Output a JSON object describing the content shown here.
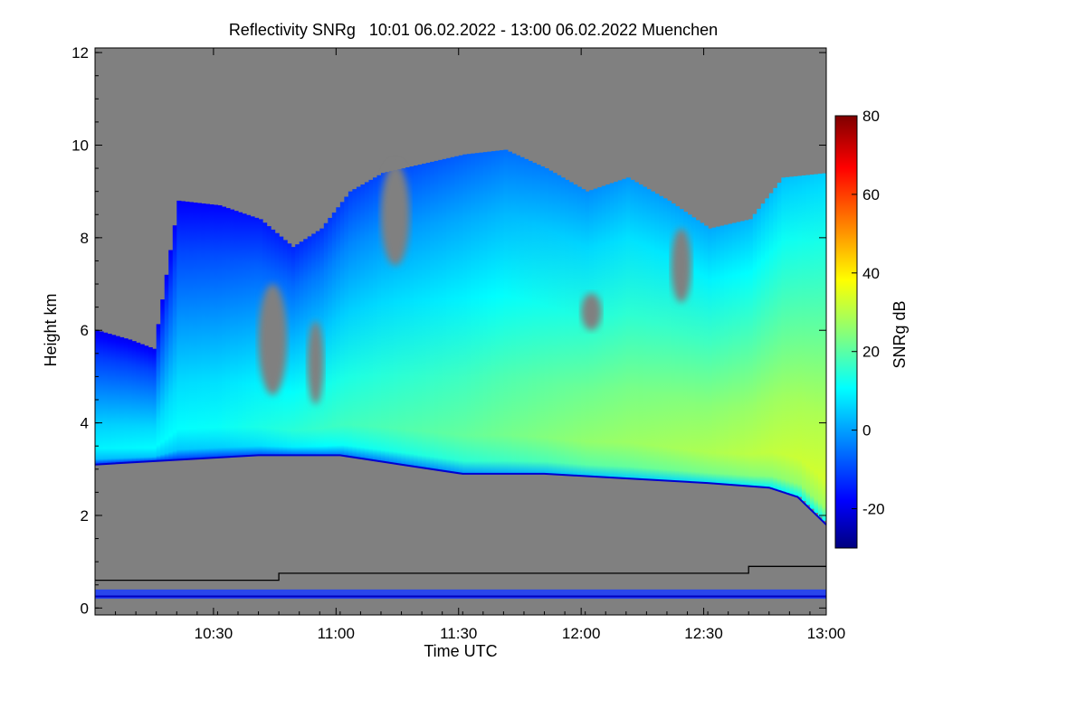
{
  "chart_data": {
    "type": "heatmap",
    "title": "Reflectivity SNRg   10:01 06.02.2022 - 13:00 06.02.2022 Muenchen",
    "xlabel": "Time UTC",
    "ylabel": "Height km",
    "colorbar_label": "SNRg dB",
    "x_range_minutes": [
      0,
      179
    ],
    "x_tick_minutes": [
      29,
      59,
      89,
      119,
      149,
      179
    ],
    "x_tick_labels": [
      "10:30",
      "11:00",
      "11:30",
      "12:00",
      "12:30",
      "13:00"
    ],
    "ylim": [
      -0.15,
      12.1
    ],
    "y_ticks": [
      0,
      2,
      4,
      6,
      8,
      10,
      12
    ],
    "y_tick_labels": [
      "0",
      "2",
      "4",
      "6",
      "8",
      "10",
      "12"
    ],
    "colorbar_range": [
      -30,
      80
    ],
    "colorbar_ticks": [
      -20,
      0,
      20,
      40,
      60,
      80
    ],
    "colorbar_tick_labels": [
      "-20",
      "0",
      "20",
      "40",
      "60",
      "80"
    ],
    "no_signal_color": "#808080",
    "colormap": [
      "#00007f",
      "#0000ff",
      "#0080ff",
      "#00ffff",
      "#80ff80",
      "#ffff00",
      "#ff8000",
      "#ff0000",
      "#7f0000"
    ],
    "echo_top_km": [
      {
        "t": 0,
        "h": 6.0
      },
      {
        "t": 8,
        "h": 5.8
      },
      {
        "t": 14,
        "h": 5.6
      },
      {
        "t": 20,
        "h": 8.8
      },
      {
        "t": 30,
        "h": 8.7
      },
      {
        "t": 40,
        "h": 8.4
      },
      {
        "t": 48,
        "h": 7.8
      },
      {
        "t": 55,
        "h": 8.2
      },
      {
        "t": 62,
        "h": 9.0
      },
      {
        "t": 70,
        "h": 9.4
      },
      {
        "t": 80,
        "h": 9.6
      },
      {
        "t": 90,
        "h": 9.8
      },
      {
        "t": 100,
        "h": 9.9
      },
      {
        "t": 110,
        "h": 9.5
      },
      {
        "t": 120,
        "h": 9.0
      },
      {
        "t": 130,
        "h": 9.3
      },
      {
        "t": 140,
        "h": 8.8
      },
      {
        "t": 150,
        "h": 8.2
      },
      {
        "t": 160,
        "h": 8.4
      },
      {
        "t": 168,
        "h": 9.3
      },
      {
        "t": 179,
        "h": 9.4
      }
    ],
    "echo_base_km": [
      {
        "t": 0,
        "h": 3.1
      },
      {
        "t": 20,
        "h": 3.2
      },
      {
        "t": 40,
        "h": 3.3
      },
      {
        "t": 60,
        "h": 3.3
      },
      {
        "t": 75,
        "h": 3.1
      },
      {
        "t": 90,
        "h": 2.9
      },
      {
        "t": 110,
        "h": 2.9
      },
      {
        "t": 130,
        "h": 2.8
      },
      {
        "t": 150,
        "h": 2.7
      },
      {
        "t": 165,
        "h": 2.6
      },
      {
        "t": 172,
        "h": 2.4
      },
      {
        "t": 179,
        "h": 1.8
      }
    ],
    "max_snr_db": [
      {
        "t": 0,
        "db": 10
      },
      {
        "t": 30,
        "db": 12
      },
      {
        "t": 60,
        "db": 18
      },
      {
        "t": 90,
        "db": 22
      },
      {
        "t": 120,
        "db": 27
      },
      {
        "t": 150,
        "db": 30
      },
      {
        "t": 179,
        "db": 34
      }
    ],
    "clear_gaps": [
      {
        "t0": 40,
        "t1": 47,
        "h0": 4.6,
        "h1": 7.0
      },
      {
        "t0": 52,
        "t1": 56,
        "h0": 4.4,
        "h1": 6.2
      },
      {
        "t0": 70,
        "t1": 77,
        "h0": 7.4,
        "h1": 9.6
      },
      {
        "t0": 119,
        "t1": 124,
        "h0": 6.0,
        "h1": 6.8
      },
      {
        "t0": 141,
        "t1": 146,
        "h0": 6.6,
        "h1": 8.2
      }
    ],
    "trace_line_km": [
      {
        "t": 0,
        "h": 0.6
      },
      {
        "t": 45,
        "h": 0.6
      },
      {
        "t": 45,
        "h": 0.75
      },
      {
        "t": 160,
        "h": 0.75
      },
      {
        "t": 160,
        "h": 0.9
      },
      {
        "t": 179,
        "h": 0.9
      }
    ],
    "ground_clutter_km": [
      0.2,
      0.4
    ]
  }
}
